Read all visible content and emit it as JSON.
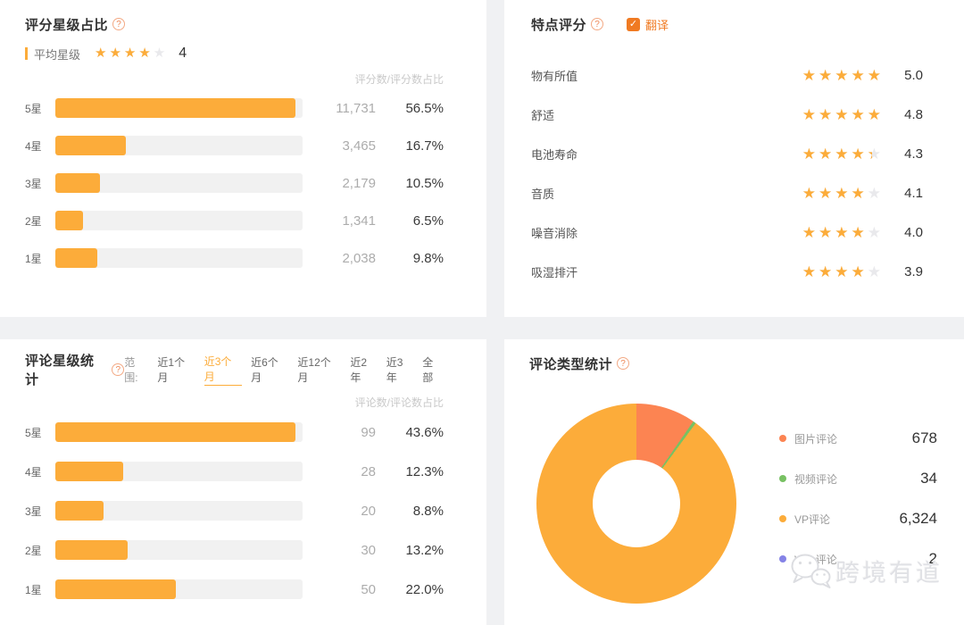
{
  "icons": {
    "help": "?",
    "check": "✓"
  },
  "colors": {
    "accent_amber": "#FCAC3A",
    "accent_orange": "#F07A22",
    "bar_track": "#F1F1F1",
    "count_gray": "#ACACAC",
    "text_dark": "#333333",
    "pie_coral": "#FC8452",
    "pie_green": "#78C163",
    "pie_amber": "#FCAC3A",
    "pie_purple": "#8583E6"
  },
  "panels": {
    "rating_dist": {
      "title": "评分星级占比",
      "avg_label": "平均星级",
      "avg_value": "4",
      "avg_star_fill": 4,
      "col_header": "评分数/评分数占比",
      "rows": [
        {
          "label": "5星",
          "count": "11,731",
          "pct": "56.5%",
          "pct_value": 56.5
        },
        {
          "label": "4星",
          "count": "3,465",
          "pct": "16.7%",
          "pct_value": 16.7
        },
        {
          "label": "3星",
          "count": "2,179",
          "pct": "10.5%",
          "pct_value": 10.5
        },
        {
          "label": "2星",
          "count": "1,341",
          "pct": "6.5%",
          "pct_value": 6.5
        },
        {
          "label": "1星",
          "count": "2,038",
          "pct": "9.8%",
          "pct_value": 9.8
        }
      ]
    },
    "feature_rating": {
      "title": "特点评分",
      "translate_label": "翻译",
      "translate_checked": true,
      "rows": [
        {
          "label": "物有所值",
          "value": "5.0",
          "star_fill": 5
        },
        {
          "label": "舒适",
          "value": "4.8",
          "star_fill": 5
        },
        {
          "label": "电池寿命",
          "value": "4.3",
          "star_fill": 4.3
        },
        {
          "label": "音质",
          "value": "4.1",
          "star_fill": 4
        },
        {
          "label": "噪音消除",
          "value": "4.0",
          "star_fill": 4
        },
        {
          "label": "吸湿排汗",
          "value": "3.9",
          "star_fill": 4
        }
      ]
    },
    "review_stats": {
      "title": "评论星级统计",
      "range_label": "范围:",
      "range_options": [
        "近1个月",
        "近3个月",
        "近6个月",
        "近12个月",
        "近2年",
        "近3年",
        "全部"
      ],
      "range_selected": "近3个月",
      "col_header": "评论数/评论数占比",
      "rows": [
        {
          "label": "5星",
          "count": "99",
          "pct": "43.6%",
          "pct_value": 43.6
        },
        {
          "label": "4星",
          "count": "28",
          "pct": "12.3%",
          "pct_value": 12.3
        },
        {
          "label": "3星",
          "count": "20",
          "pct": "8.8%",
          "pct_value": 8.8
        },
        {
          "label": "2星",
          "count": "30",
          "pct": "13.2%",
          "pct_value": 13.2
        },
        {
          "label": "1星",
          "count": "50",
          "pct": "22.0%",
          "pct_value": 22.0
        }
      ]
    },
    "review_types": {
      "title": "评论类型统计",
      "legend": [
        {
          "label": "图片评论",
          "value": "678",
          "color": "#FC8452"
        },
        {
          "label": "视频评论",
          "value": "34",
          "color": "#78C163"
        },
        {
          "label": "VP评论",
          "value": "6,324",
          "color": "#FCAC3A"
        },
        {
          "label": "Vine评论",
          "value": "2",
          "color": "#8583E6"
        }
      ]
    }
  },
  "watermark": {
    "text": "跨境有道",
    "icon": "wechat-icon"
  },
  "chart_data": [
    {
      "type": "bar",
      "title": "评分星级占比",
      "orientation": "horizontal",
      "categories": [
        "5星",
        "4星",
        "3星",
        "2星",
        "1星"
      ],
      "series": [
        {
          "name": "评分数",
          "values": [
            11731,
            3465,
            2179,
            1341,
            2038
          ]
        },
        {
          "name": "评分数占比(%)",
          "values": [
            56.5,
            16.7,
            10.5,
            6.5,
            9.8
          ]
        }
      ],
      "xlabel": "",
      "ylabel": "",
      "grid": false,
      "legend_position": "none",
      "note": "bars scaled relative to max percent 56.5"
    },
    {
      "type": "table",
      "title": "特点评分",
      "columns": [
        "特点",
        "评分"
      ],
      "rows": [
        [
          "物有所值",
          5.0
        ],
        [
          "舒适",
          4.8
        ],
        [
          "电池寿命",
          4.3
        ],
        [
          "音质",
          4.1
        ],
        [
          "噪音消除",
          4.0
        ],
        [
          "吸湿排汗",
          3.9
        ]
      ]
    },
    {
      "type": "bar",
      "title": "评论星级统计",
      "orientation": "horizontal",
      "range_selected": "近3个月",
      "categories": [
        "5星",
        "4星",
        "3星",
        "2星",
        "1星"
      ],
      "series": [
        {
          "name": "评论数",
          "values": [
            99,
            28,
            20,
            30,
            50
          ]
        },
        {
          "name": "评论数占比(%)",
          "values": [
            43.6,
            12.3,
            8.8,
            13.2,
            22.0
          ]
        }
      ],
      "xlabel": "",
      "ylabel": "",
      "grid": false,
      "legend_position": "none",
      "note": "bars scaled relative to max percent 43.6"
    },
    {
      "type": "pie",
      "title": "评论类型统计",
      "donut": true,
      "start_angle_deg": 0,
      "labels": [
        "图片评论",
        "视频评论",
        "VP评论",
        "Vine评论"
      ],
      "values": [
        678,
        34,
        6324,
        2
      ],
      "colors": [
        "#FC8452",
        "#78C163",
        "#FCAC3A",
        "#8583E6"
      ],
      "legend_position": "right"
    }
  ]
}
